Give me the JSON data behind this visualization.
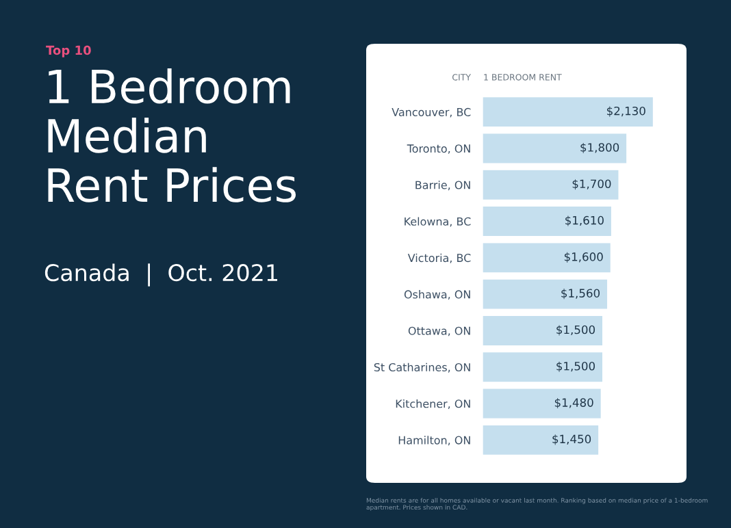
{
  "chart_data": {
    "type": "bar",
    "orientation": "horizontal",
    "title": "1 Bedroom\nMedian\nRent Prices",
    "subtitle": "Canada  |  Oct. 2021",
    "ylabel": "CITY",
    "xlabel": "1 BEDROOM RENT",
    "categories": [
      "Vancouver, BC",
      "Toronto, ON",
      "Barrie, ON",
      "Kelowna, BC",
      "Victoria, BC",
      "Oshawa, ON",
      "Ottawa, ON",
      "St Catharines, ON",
      "Kitchener, ON",
      "Hamilton, ON"
    ],
    "values": [
      2130,
      1800,
      1700,
      1610,
      1600,
      1560,
      1500,
      1500,
      1480,
      1450
    ],
    "value_labels": [
      "$2,130",
      "$1,800",
      "$1,700",
      "$1,610",
      "$1,600",
      "$1,560",
      "$1,500",
      "$1,500",
      "$1,480",
      "$1,450"
    ],
    "color": "#c5dfee",
    "annotations": [
      "Top 10",
      "Median rents are for all homes available or vacant last month. Ranking based on median price of a 1-bedroom apartment. Prices shown in CAD."
    ],
    "tick_labels": "y",
    "grid": false,
    "legend": false
  }
}
